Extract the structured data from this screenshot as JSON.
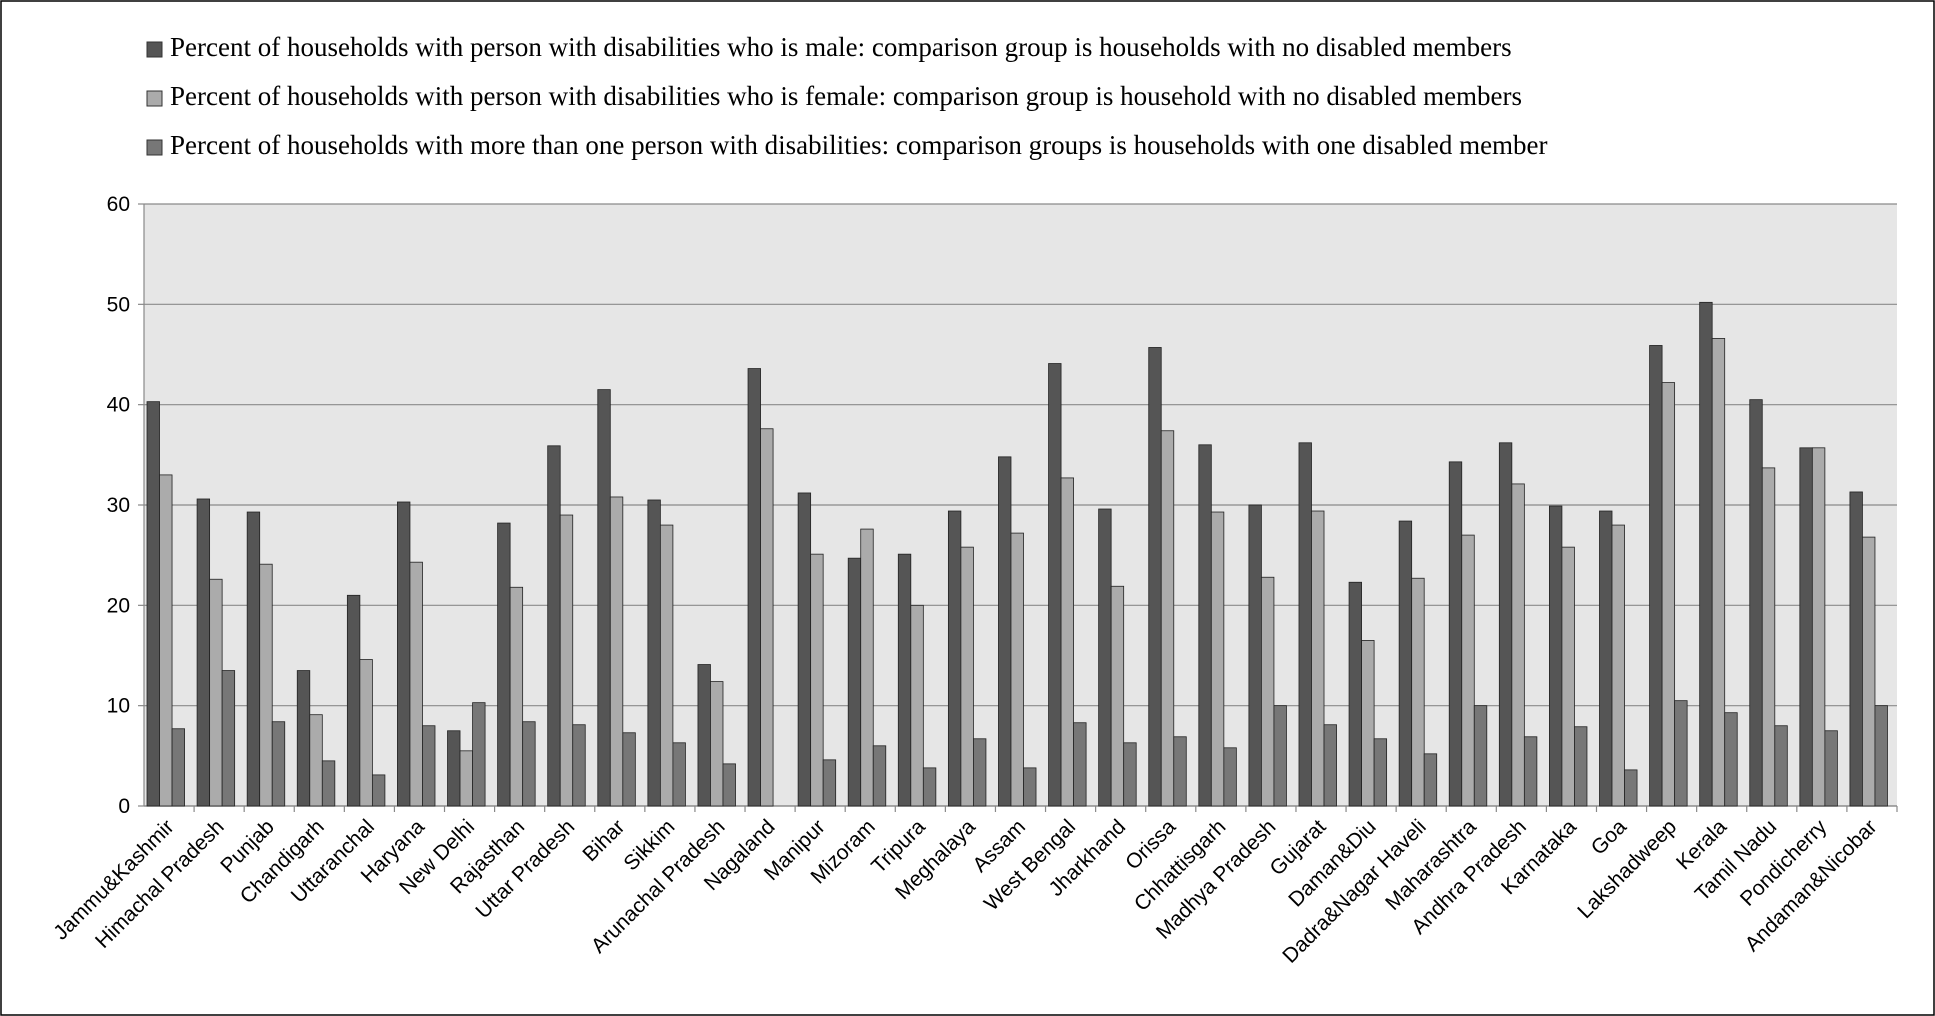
{
  "chart_data": {
    "type": "bar",
    "categories": [
      "Jammu&Kashmir",
      "Himachal Pradesh",
      "Punjab",
      "Chandigarh",
      "Uttaranchal",
      "Haryana",
      "New Delhi",
      "Rajasthan",
      "Uttar Pradesh",
      "Bihar",
      "Sikkim",
      "Arunachal Pradesh",
      "Nagaland",
      "Manipur",
      "Mizoram",
      "Tripura",
      "Meghalaya",
      "Assam",
      "West Bengal",
      "Jharkhand",
      "Orissa",
      "Chhattisgarh",
      "Madhya Pradesh",
      "Gujarat",
      "Daman&Diu",
      "Dadra&Nagar Haveli",
      "Maharashtra",
      "Andhra Pradesh",
      "Karnataka",
      "Goa",
      "Lakshadweep",
      "Kerala",
      "Tamil Nadu",
      "Pondicherry",
      "Andaman&Nicobar"
    ],
    "series": [
      {
        "name": "Percent of households with person with disabilities who is male: comparison group is households with no disabled members",
        "color": "#555555",
        "values": [
          40.3,
          30.6,
          29.3,
          13.5,
          21,
          30.3,
          7.5,
          28.2,
          35.9,
          41.5,
          30.5,
          14.1,
          43.6,
          31.2,
          24.7,
          25.1,
          29.4,
          34.8,
          44.1,
          29.6,
          45.7,
          36,
          30,
          36.2,
          22.3,
          28.4,
          34.3,
          36.2,
          29.9,
          29.4,
          45.9,
          50.2,
          40.5,
          35.7,
          31.3
        ]
      },
      {
        "name": "Percent of households with person with disabilities who is female: comparison group is household with no disabled members",
        "color": "#ababab",
        "values": [
          33,
          22.6,
          24.1,
          9.1,
          14.6,
          24.3,
          5.5,
          21.8,
          29,
          30.8,
          28,
          12.4,
          37.6,
          25.1,
          27.6,
          20,
          25.8,
          27.2,
          32.7,
          21.9,
          37.4,
          29.3,
          22.8,
          29.4,
          16.5,
          22.7,
          27,
          32.1,
          25.8,
          28,
          42.2,
          46.6,
          33.7,
          35.7,
          26.8
        ]
      },
      {
        "name": "Percent of households with more than one person with disabilities: comparison groups is households with one disabled member",
        "color": "#777777",
        "values": [
          7.7,
          13.5,
          8.4,
          4.5,
          3.1,
          8,
          10.3,
          8.4,
          8.1,
          7.3,
          6.3,
          4.2,
          null,
          4.6,
          6,
          3.8,
          6.7,
          3.8,
          8.3,
          6.3,
          6.9,
          5.8,
          10,
          8.1,
          6.7,
          5.2,
          10,
          6.9,
          7.9,
          3.6,
          10.5,
          9.3,
          8,
          7.5,
          10
        ]
      }
    ],
    "ylim": [
      0,
      60
    ],
    "yticks": [
      0,
      10,
      20,
      30,
      40,
      50,
      60
    ],
    "grid": true,
    "legend": "top"
  }
}
